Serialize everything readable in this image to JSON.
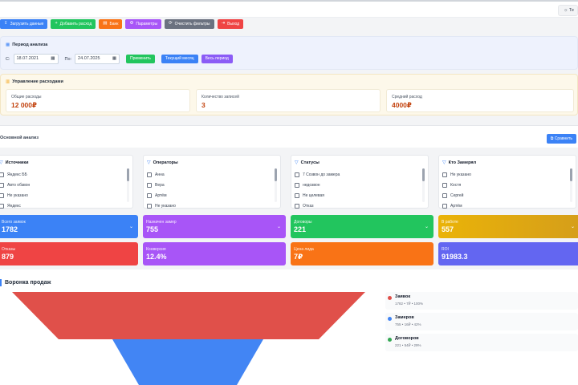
{
  "header": {
    "theme_label": "Те"
  },
  "toolbar": {
    "buttons": [
      {
        "label": "Загрузить данные",
        "icon": "upload-icon",
        "color": "#3b82f6"
      },
      {
        "label": "Добавить расход",
        "icon": "plus-icon",
        "color": "#22c55e"
      },
      {
        "label": "Банк",
        "icon": "bank-icon",
        "color": "#f97316"
      },
      {
        "label": "Параметры",
        "icon": "gear-icon",
        "color": "#a855f7"
      },
      {
        "label": "Очистить фильтры",
        "icon": "refresh-icon",
        "color": "#6b7280"
      },
      {
        "label": "Выход",
        "icon": "logout-icon",
        "color": "#ef4444"
      }
    ]
  },
  "period": {
    "title": "Период анализа",
    "from_label": "С:",
    "from_value": "18.07.2021",
    "to_label": "По:",
    "to_value": "24.07.2025",
    "apply_label": "Применить",
    "current_month_label": "Текущий месяц",
    "all_period_label": "Весь период"
  },
  "expenses": {
    "title": "Управление расходами",
    "cards": [
      {
        "label": "Общие расходы",
        "value": "12 000₽"
      },
      {
        "label": "Количество записей",
        "value": "3"
      },
      {
        "label": "Средний расход",
        "value": "4000₽"
      }
    ]
  },
  "main": {
    "title": "Основной анализ",
    "compare_label": "Сравнить"
  },
  "filters": [
    {
      "title": "Источники",
      "items": [
        "Яндекс ББ",
        "Авто обзвон",
        "Не указано",
        "Яндекс"
      ]
    },
    {
      "title": "Операторы",
      "items": [
        "Анна",
        "Вера",
        "Артём",
        "Не указано"
      ]
    },
    {
      "title": "Статусы",
      "items": [
        "7 Созвон до замера",
        "недозвон",
        "Не целевая",
        "Отказ"
      ]
    },
    {
      "title": "Кто Замерял",
      "items": [
        "Не указано",
        "Костя",
        "Сергей",
        "Артём"
      ]
    }
  ],
  "stats_row1": [
    {
      "label": "Всего заявок",
      "value": "1782",
      "color": "#3b82f6"
    },
    {
      "label": "Назначен замер",
      "value": "755",
      "color": "#a855f7"
    },
    {
      "label": "Договоры",
      "value": "221",
      "color": "#22c55e"
    },
    {
      "label": "В работе",
      "value": "557",
      "color": "#eab308"
    }
  ],
  "stats_row2": [
    {
      "label": "Отказы",
      "value": "879",
      "color": "#ef4444"
    },
    {
      "label": "Конверсия",
      "value": "12.4%",
      "color": "#a855f7"
    },
    {
      "label": "Цена лида",
      "value": "7₽",
      "color": "#f97316"
    },
    {
      "label": "ROI",
      "value": "91983.3",
      "color": "#6366f1"
    }
  ],
  "funnel": {
    "title": "Воронка продаж",
    "stages": [
      {
        "name": "Заявок",
        "detail": "1782 • 7₽ • 100%",
        "value": 1782,
        "color": "#e0504a"
      },
      {
        "name": "Замеров",
        "detail": "755 • 16₽ • 42%",
        "value": 755,
        "color": "#4285f4"
      },
      {
        "name": "Договоров",
        "detail": "221 • 54₽ • 29%",
        "value": 221,
        "color": "#34a853"
      }
    ]
  }
}
